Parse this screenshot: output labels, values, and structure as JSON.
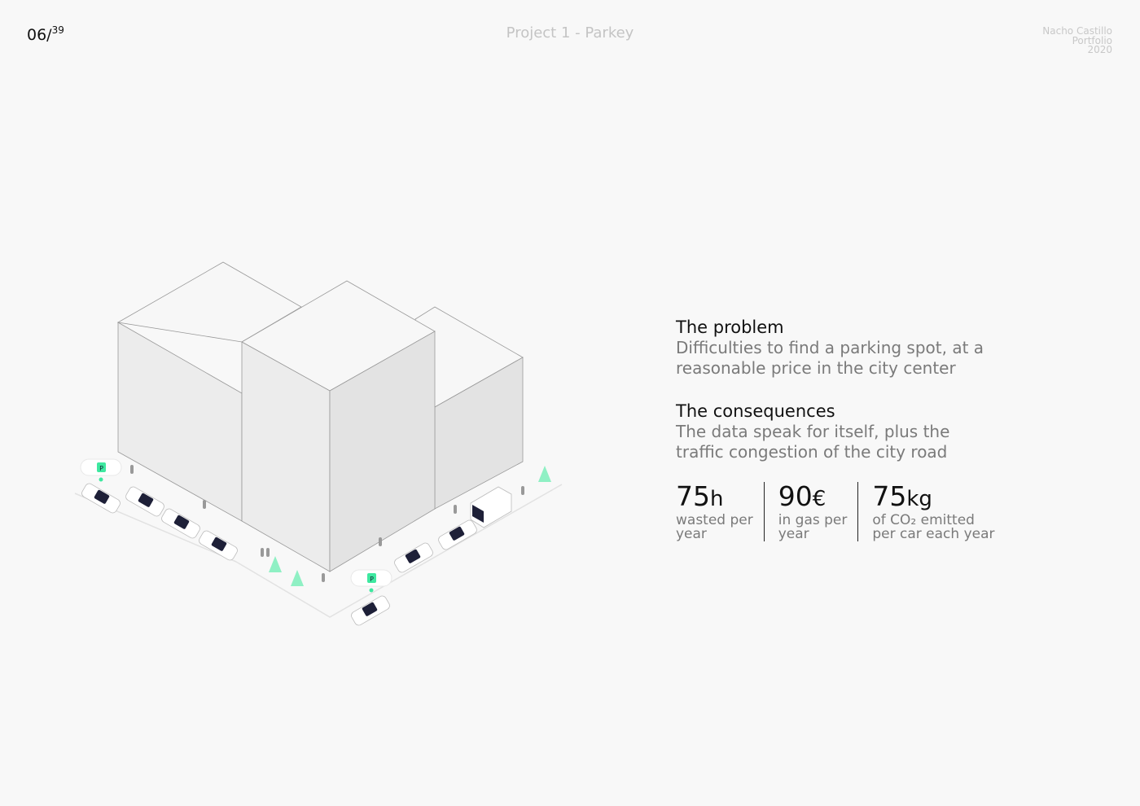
{
  "header": {
    "page_current": "06/",
    "page_total": "39",
    "title": "Project 1 - Parkey",
    "author": "Nacho Castillo",
    "subtitle": "Portfolio",
    "year": "2020"
  },
  "problem": {
    "heading": "The problem",
    "line1": "Difficulties to find a parking spot, at a",
    "line2": "reasonable price in the city center"
  },
  "consequences": {
    "heading": "The consequences",
    "line1": "The data speak for itself, plus the",
    "line2": "traffic congestion of the city road"
  },
  "stats": [
    {
      "value": "75",
      "unit": "h",
      "line1": "wasted per",
      "line2": "year"
    },
    {
      "value": "90",
      "unit": "€",
      "line1": "in gas per",
      "line2": "year"
    },
    {
      "value": "75",
      "unit": "kg",
      "line1": "of CO₂ emitted",
      "line2": "per car each year"
    }
  ],
  "illustration": {
    "parking_marker": "P",
    "accent": "#3ee8a0",
    "car_window": "#1e2038"
  }
}
